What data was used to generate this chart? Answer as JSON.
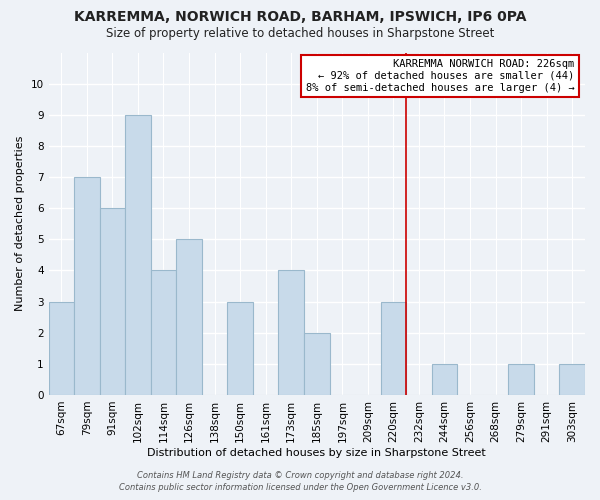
{
  "title": "KARREMMA, NORWICH ROAD, BARHAM, IPSWICH, IP6 0PA",
  "subtitle": "Size of property relative to detached houses in Sharpstone Street",
  "xlabel": "Distribution of detached houses by size in Sharpstone Street",
  "ylabel": "Number of detached properties",
  "bar_labels": [
    "67sqm",
    "79sqm",
    "91sqm",
    "102sqm",
    "114sqm",
    "126sqm",
    "138sqm",
    "150sqm",
    "161sqm",
    "173sqm",
    "185sqm",
    "197sqm",
    "209sqm",
    "220sqm",
    "232sqm",
    "244sqm",
    "256sqm",
    "268sqm",
    "279sqm",
    "291sqm",
    "303sqm"
  ],
  "bar_values": [
    3,
    7,
    6,
    9,
    4,
    5,
    0,
    3,
    0,
    4,
    2,
    0,
    0,
    3,
    0,
    1,
    0,
    0,
    1,
    0,
    1
  ],
  "bar_color": "#c8daea",
  "bar_edge_color": "#9ab8cc",
  "reference_line_x": 13.5,
  "reference_line_color": "#cc0000",
  "ylim": [
    0,
    11
  ],
  "yticks": [
    0,
    1,
    2,
    3,
    4,
    5,
    6,
    7,
    8,
    9,
    10,
    11
  ],
  "annotation_title": "KARREMMA NORWICH ROAD: 226sqm",
  "annotation_line1": "← 92% of detached houses are smaller (44)",
  "annotation_line2": "8% of semi-detached houses are larger (4) →",
  "annotation_box_color": "#ffffff",
  "annotation_box_edge": "#cc0000",
  "footer_line1": "Contains HM Land Registry data © Crown copyright and database right 2024.",
  "footer_line2": "Contains public sector information licensed under the Open Government Licence v3.0.",
  "background_color": "#eef2f7",
  "grid_color": "#ffffff",
  "title_fontsize": 10,
  "subtitle_fontsize": 8.5,
  "axis_label_fontsize": 8,
  "tick_fontsize": 7.5,
  "annotation_fontsize": 7.5,
  "footer_fontsize": 6
}
